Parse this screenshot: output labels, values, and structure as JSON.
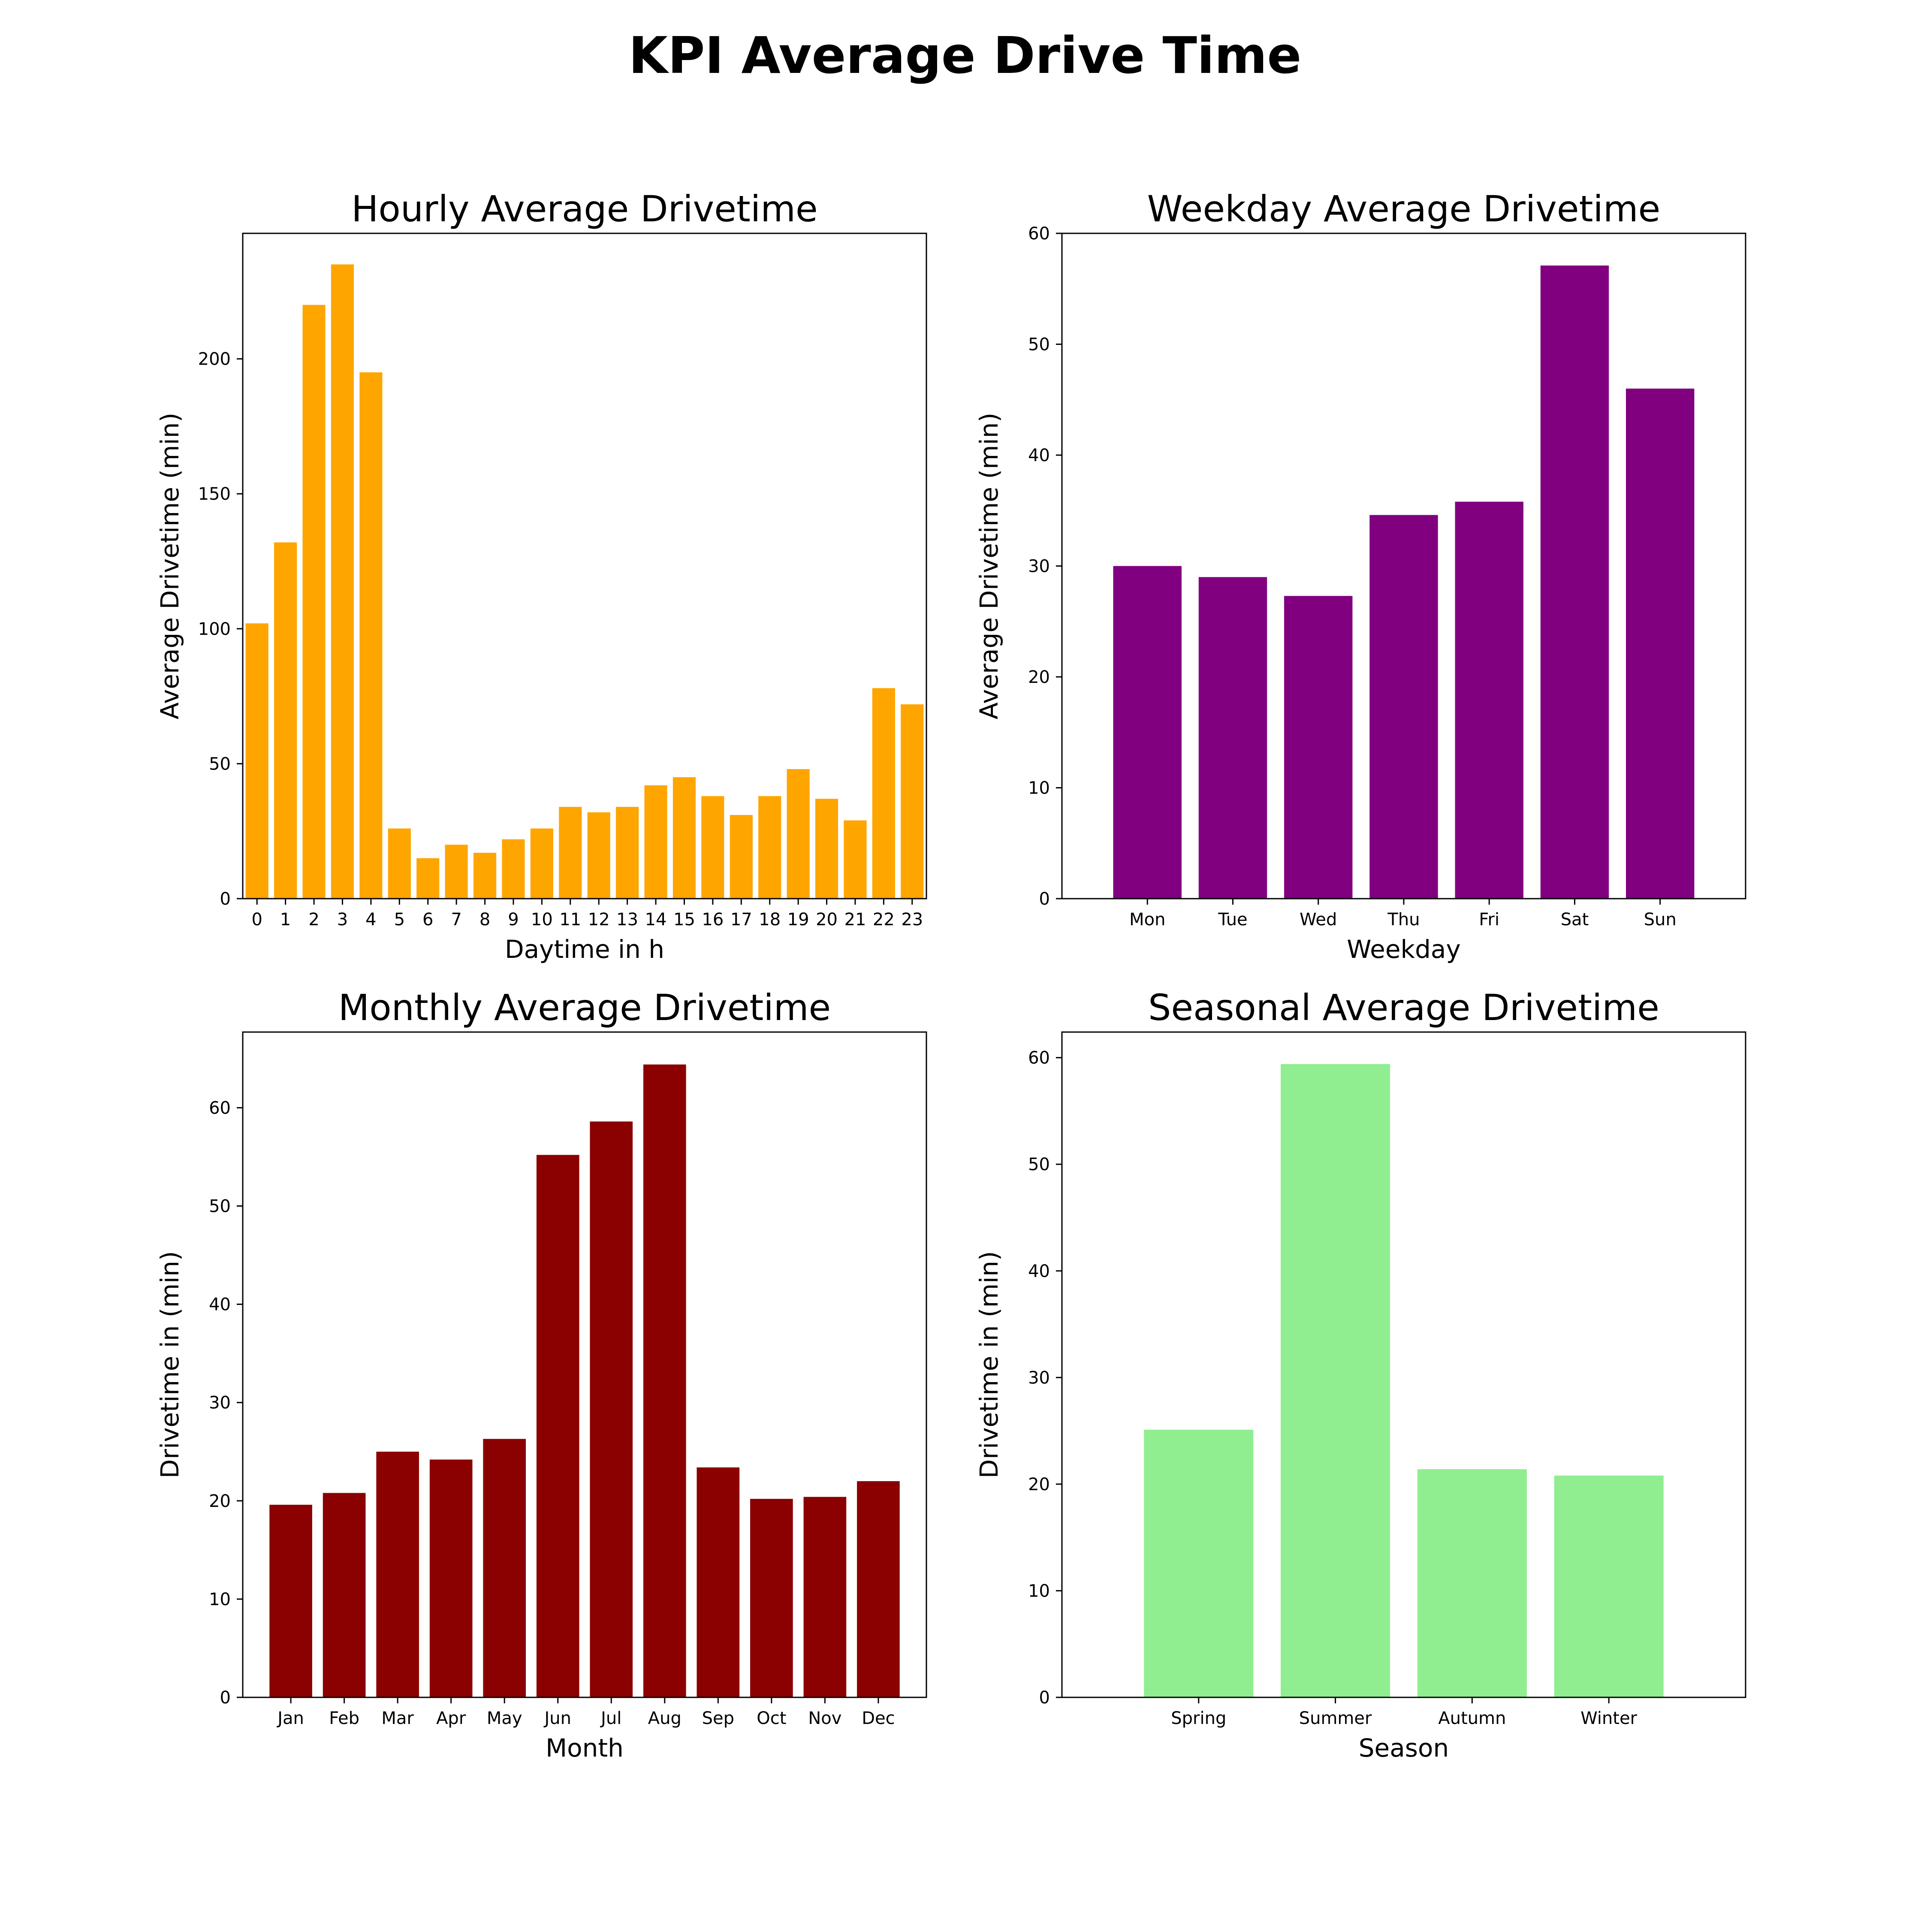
{
  "figure": {
    "title": "KPI Average Drive Time"
  },
  "chart_data": [
    {
      "id": "hourly",
      "type": "bar",
      "title": "Hourly Average Drivetime",
      "xlabel": "Daytime in h",
      "ylabel": "Average Drivetime (min)",
      "color": "#FFA500",
      "categories": [
        "0",
        "1",
        "2",
        "3",
        "4",
        "5",
        "6",
        "7",
        "8",
        "9",
        "10",
        "11",
        "12",
        "13",
        "14",
        "15",
        "16",
        "17",
        "18",
        "19",
        "20",
        "21",
        "22",
        "23"
      ],
      "values": [
        102,
        132,
        220,
        235,
        195,
        26,
        15,
        20,
        17,
        22,
        26,
        34,
        32,
        34,
        42,
        45,
        38,
        31,
        38,
        48,
        37,
        29,
        78,
        72
      ],
      "ylim": [
        0,
        246.5
      ],
      "yticks": [
        0,
        50,
        100,
        150,
        200
      ],
      "xlim": [
        -0.5,
        23.5
      ],
      "bar_width": 0.8
    },
    {
      "id": "weekday",
      "type": "bar",
      "title": "Weekday Average Drivetime",
      "xlabel": "Weekday",
      "ylabel": "Average Drivetime (min)",
      "color": "#800080",
      "categories": [
        "Mon",
        "Tue",
        "Wed",
        "Thu",
        "Fri",
        "Sat",
        "Sun"
      ],
      "values": [
        30.0,
        29.0,
        27.3,
        34.6,
        35.8,
        57.1,
        46.0
      ],
      "ylim": [
        0,
        60
      ],
      "yticks": [
        0,
        10,
        20,
        30,
        40,
        50,
        60
      ],
      "xlim": [
        -1.0,
        7.0
      ],
      "bar_width": 0.8
    },
    {
      "id": "monthly",
      "type": "bar",
      "title": "Monthly Average Drivetime",
      "xlabel": "Month",
      "ylabel": "Drivetime in (min)",
      "color": "#8B0000",
      "categories": [
        "Jan",
        "Feb",
        "Mar",
        "Apr",
        "May",
        "Jun",
        "Jul",
        "Aug",
        "Sep",
        "Oct",
        "Nov",
        "Dec"
      ],
      "values": [
        19.6,
        20.8,
        25.0,
        24.2,
        26.3,
        55.2,
        58.6,
        64.4,
        23.4,
        20.2,
        20.4,
        22.0
      ],
      "ylim": [
        0,
        67.7
      ],
      "yticks": [
        0,
        10,
        20,
        30,
        40,
        50,
        60
      ],
      "xlim": [
        -0.9,
        11.9
      ],
      "bar_width": 0.8
    },
    {
      "id": "seasonal",
      "type": "bar",
      "title": "Seasonal Average Drivetime",
      "xlabel": "Season",
      "ylabel": "Drivetime in (min)",
      "color": "#90EE90",
      "categories": [
        "Spring",
        "Summer",
        "Autumn",
        "Winter"
      ],
      "values": [
        25.1,
        59.4,
        21.4,
        20.8
      ],
      "ylim": [
        0,
        62.4
      ],
      "yticks": [
        0,
        10,
        20,
        30,
        40,
        50,
        60
      ],
      "xlim": [
        -1.0,
        4.0
      ],
      "bar_width": 0.8
    }
  ]
}
